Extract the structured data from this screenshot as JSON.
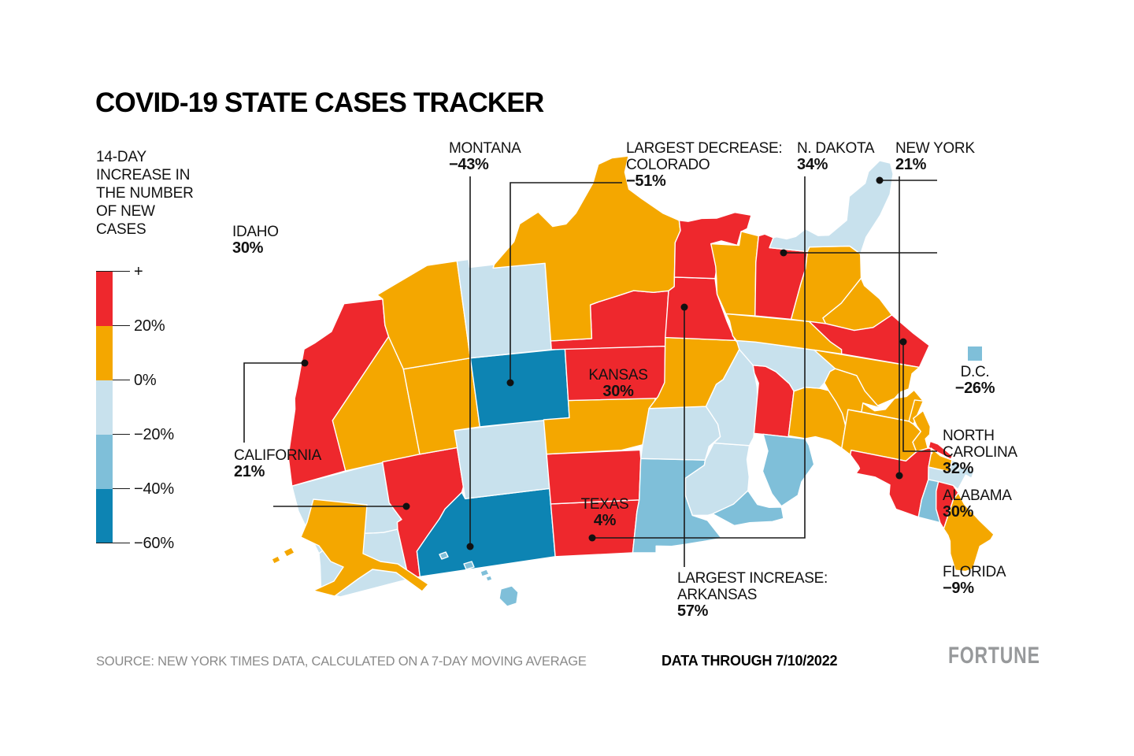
{
  "title": "COVID-19 STATE CASES TRACKER",
  "legend": {
    "label": "14-DAY INCREASE IN THE NUMBER OF NEW CASES",
    "label_lines": [
      "14-DAY",
      "INCREASE IN",
      "THE NUMBER",
      "OF NEW",
      "CASES"
    ],
    "ticks": [
      "+",
      "20%",
      "0%",
      "−20%",
      "−40%",
      "−60%"
    ],
    "bucket_colors": {
      "gt20": "#ee282d",
      "p0to20": "#f4a700",
      "n20to0": "#c8e1ed",
      "n40to20": "#7fbfd9",
      "n60to40": "#0d84b3"
    }
  },
  "annotations": {
    "montana": {
      "name": "MONTANA",
      "value": "−43%"
    },
    "idaho": {
      "name": "IDAHO",
      "value": "30%"
    },
    "colorado": {
      "prefix": "LARGEST DECREASE:",
      "name": "COLORADO",
      "value": "−51%"
    },
    "ndakota": {
      "name": "N. DAKOTA",
      "value": "34%"
    },
    "newyork": {
      "name": "NEW YORK",
      "value": "21%"
    },
    "california": {
      "name": "CALIFORNIA",
      "value": "21%"
    },
    "kansas": {
      "name": "KANSAS",
      "value": "30%"
    },
    "texas": {
      "name": "TEXAS",
      "value": "4%"
    },
    "arkansas": {
      "prefix": "LARGEST INCREASE:",
      "name": "ARKANSAS",
      "value": "57%"
    },
    "dc": {
      "name": "D.C.",
      "value": "−26%"
    },
    "ncarolina": {
      "name": "NORTH",
      "name2": "CAROLINA",
      "value": "32%"
    },
    "alabama": {
      "name": "ALABAMA",
      "value": "30%"
    },
    "florida": {
      "name": "FLORIDA",
      "value": "−9%"
    }
  },
  "footer": {
    "source": "SOURCE: NEW YORK TIMES DATA, CALCULATED ON A 7-DAY MOVING AVERAGE",
    "data_through": "DATA THROUGH 7/10/2022",
    "brand": "FORTUNE"
  },
  "chart_data": {
    "type": "choropleth",
    "title": "COVID-19 STATE CASES TRACKER",
    "metric": "14-day increase in the number of new cases (%)",
    "legend_scale": {
      "tick_values": [
        "+",
        "20%",
        "0%",
        "−20%",
        "−40%",
        "−60%"
      ],
      "min": -60,
      "max_labeled": 20
    },
    "labeled_values": {
      "Montana": -43,
      "Colorado": -51,
      "North Dakota": 34,
      "New York": 21,
      "Idaho": 30,
      "California": 21,
      "Kansas": 30,
      "Texas": 4,
      "Arkansas": 57,
      "D.C.": -26,
      "North Carolina": 32,
      "Alabama": 30,
      "Florida": -9
    },
    "extremes": {
      "largest_increase": "Arkansas 57%",
      "largest_decrease": "Colorado −51%"
    },
    "bucket_legend": {
      "gt20": "more than +20%",
      "p0to20": "0% to +20%",
      "n20to0": "−20% to 0%",
      "n40to20": "−40% to −20%",
      "n60to40": "−60% to −40%"
    },
    "state_buckets": {
      "WA": "n20to0",
      "OR": "n20to0",
      "CA": "gt20",
      "NV": "p0to20",
      "ID": "gt20",
      "MT": "n60to40",
      "WY": "n20to0",
      "UT": "p0to20",
      "CO": "n60to40",
      "AZ": "p0to20",
      "NM": "n20to0",
      "ND": "gt20",
      "SD": "gt20",
      "NE": "p0to20",
      "KS": "gt20",
      "OK": "gt20",
      "TX": "p0to20",
      "MN": "n40to20",
      "IA": "n20to0",
      "MO": "p0to20",
      "AR": "gt20",
      "LA": "gt20",
      "WI": "n20to0",
      "IL": "n20to0",
      "MI": "n40to20",
      "IN": "gt20",
      "OH": "p0to20",
      "KY": "n20to0",
      "TN": "p0to20",
      "MS": "p0to20",
      "AL": "gt20",
      "GA": "p0to20",
      "SC": "p0to20",
      "NC": "gt20",
      "VA": "p0to20",
      "WV": "p0to20",
      "MD": "p0to20",
      "DE": "p0to20",
      "PA": "p0to20",
      "NJ": "p0to20",
      "NY": "gt20",
      "CT": "p0to20",
      "RI": "n20to0",
      "MA": "n20to0",
      "VT": "n40to20",
      "NH": "gt20",
      "ME": "p0to20",
      "FL": "n20to0",
      "AK": "p0to20",
      "HI": "n40to20",
      "DC": "n40to20"
    }
  }
}
